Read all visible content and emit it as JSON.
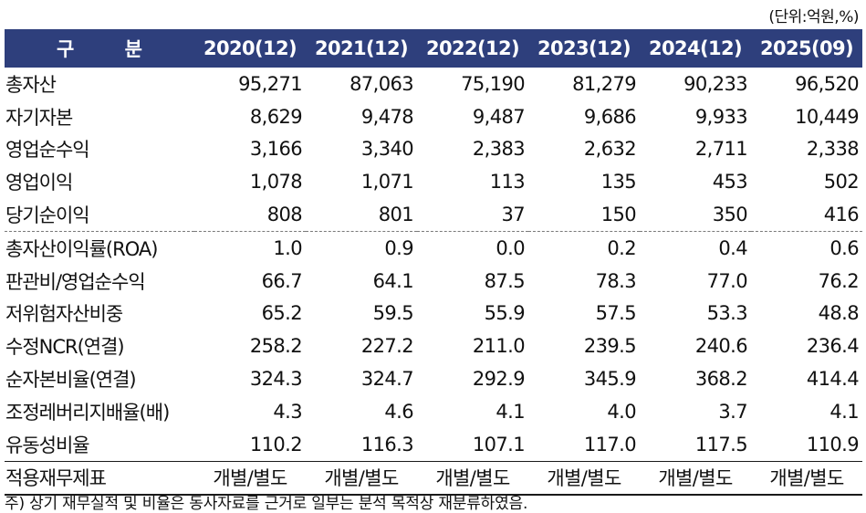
{
  "unit_note": "(단위:억원,%)",
  "header": {
    "label": "구 분",
    "years": [
      "2020(12)",
      "2021(12)",
      "2022(12)",
      "2023(12)",
      "2024(12)",
      "2025(09)"
    ]
  },
  "rows": [
    {
      "label": "총자산",
      "values": [
        "95,271",
        "87,063",
        "75,190",
        "81,279",
        "90,233",
        "96,520"
      ]
    },
    {
      "label": "자기자본",
      "values": [
        "8,629",
        "9,478",
        "9,487",
        "9,686",
        "9,933",
        "10,449"
      ]
    },
    {
      "label": "영업순수익",
      "values": [
        "3,166",
        "3,340",
        "2,383",
        "2,632",
        "2,711",
        "2,338"
      ]
    },
    {
      "label": "영업이익",
      "values": [
        "1,078",
        "1,071",
        "113",
        "135",
        "453",
        "502"
      ]
    },
    {
      "label": "당기순이익",
      "values": [
        "808",
        "801",
        "37",
        "150",
        "350",
        "416"
      ]
    },
    {
      "label": "총자산이익률(ROA)",
      "values": [
        "1.0",
        "0.9",
        "0.0",
        "0.2",
        "0.4",
        "0.6"
      ]
    },
    {
      "label": "판관비/영업순수익",
      "values": [
        "66.7",
        "64.1",
        "87.5",
        "78.3",
        "77.0",
        "76.2"
      ]
    },
    {
      "label": "저위험자산비중",
      "values": [
        "65.2",
        "59.5",
        "55.9",
        "57.5",
        "53.3",
        "48.8"
      ]
    },
    {
      "label": "수정NCR(연결)",
      "values": [
        "258.2",
        "227.2",
        "211.0",
        "239.5",
        "240.6",
        "236.4"
      ]
    },
    {
      "label": "순자본비율(연결)",
      "values": [
        "324.3",
        "324.7",
        "292.9",
        "345.9",
        "368.2",
        "414.4"
      ]
    },
    {
      "label": "조정레버리지배율(배)",
      "values": [
        "4.3",
        "4.6",
        "4.1",
        "4.0",
        "3.7",
        "4.1"
      ]
    },
    {
      "label": "유동성비율",
      "values": [
        "110.2",
        "116.3",
        "107.1",
        "117.0",
        "117.5",
        "110.9"
      ]
    }
  ],
  "basis": {
    "label": "적용재무제표",
    "values": [
      "개별/별도",
      "개별/별도",
      "개별/별도",
      "개별/별도",
      "개별/별도",
      "개별/별도"
    ]
  },
  "footnote": "주) 상기 재무실적 및 비율은 동사자료를 근거로 일부는 분석 목적상 재분류하였음."
}
